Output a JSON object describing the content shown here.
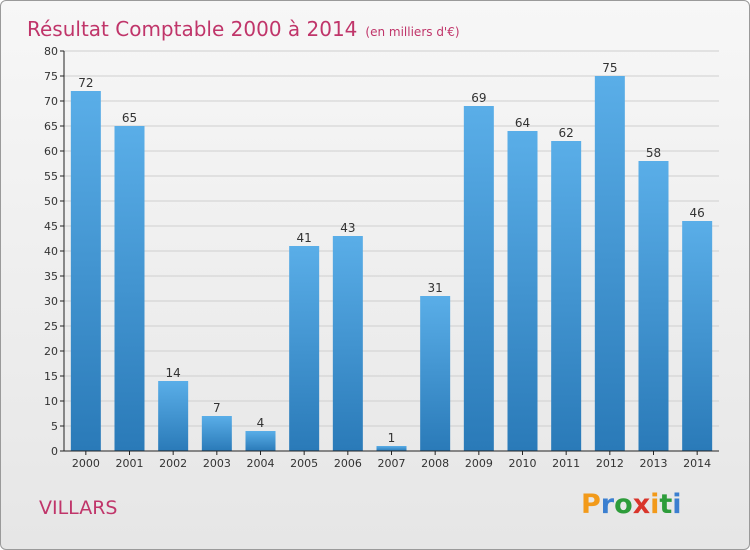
{
  "title": "Résultat Comptable 2000 à 2014",
  "unit_note": "(en milliers d'€)",
  "commune": "VILLARS",
  "logo_text": "Proxiti",
  "colors": {
    "title": "#c0356a",
    "bar_top": "#5aaee8",
    "bar_bottom": "#2a7ab8",
    "grid": "#cfcfcf",
    "axis": "#222222"
  },
  "chart_data": {
    "type": "bar",
    "title": "Résultat Comptable 2000 à 2014",
    "xlabel": "",
    "ylabel": "",
    "ylim": [
      0,
      80
    ],
    "yticks": [
      0,
      5,
      10,
      15,
      20,
      25,
      30,
      35,
      40,
      45,
      50,
      55,
      60,
      65,
      70,
      75,
      80
    ],
    "grid": true,
    "categories": [
      "2000",
      "2001",
      "2002",
      "2003",
      "2004",
      "2005",
      "2006",
      "2007",
      "2008",
      "2009",
      "2010",
      "2011",
      "2012",
      "2013",
      "2014"
    ],
    "values": [
      72,
      65,
      14,
      7,
      4,
      41,
      43,
      1,
      31,
      69,
      64,
      62,
      75,
      58,
      46
    ]
  }
}
